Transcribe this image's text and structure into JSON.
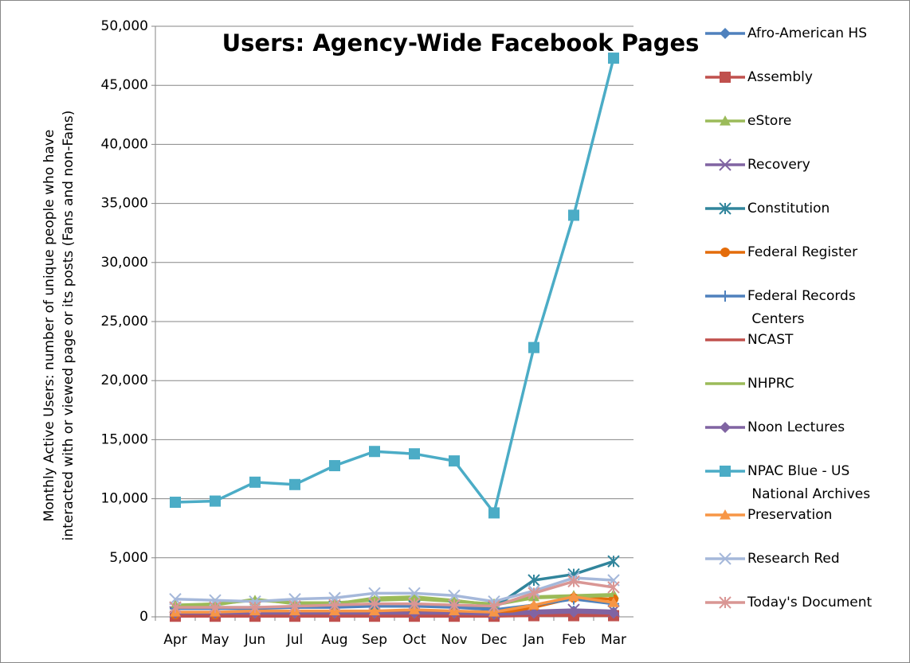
{
  "chart_data": {
    "type": "line",
    "title": "Users: Agency-Wide Facebook Pages",
    "y_label": [
      "Monthly Active Users: number of unique people who have",
      "interacted with or viewed page or its posts (Fans and non-Fans)"
    ],
    "categories": [
      "Apr",
      "May",
      "Jun",
      "Jul",
      "Aug",
      "Sep",
      "Oct",
      "Nov",
      "Dec",
      "Jan",
      "Feb",
      "Mar"
    ],
    "ylim": [
      0,
      50000
    ],
    "yticks": [
      0,
      {
        "value": 5000,
        "label": "5,000"
      },
      {
        "value": 10000,
        "label": "10,000"
      },
      {
        "value": 15000,
        "label": "15,000"
      },
      {
        "value": 20000,
        "label": "20,000"
      },
      {
        "value": 25000,
        "label": "25,000"
      },
      {
        "value": 30000,
        "label": "30,000"
      },
      {
        "value": 35000,
        "label": "35,000"
      },
      {
        "value": 40000,
        "label": "40,000"
      },
      {
        "value": 45000,
        "label": "45,000"
      },
      {
        "value": 50000,
        "label": "50,000"
      }
    ],
    "grid": true,
    "legend": "right",
    "series": [
      {
        "name": "Afro-American HS",
        "color": "#4f81bd",
        "marker": "diamond",
        "values": [
          300,
          300,
          300,
          300,
          300,
          300,
          300,
          300,
          200,
          400,
          500,
          400
        ]
      },
      {
        "name": "Assembly",
        "color": "#c0504d",
        "marker": "square",
        "values": [
          50,
          50,
          50,
          50,
          50,
          50,
          50,
          50,
          50,
          100,
          100,
          100
        ]
      },
      {
        "name": "eStore",
        "color": "#9bbb59",
        "marker": "triangle",
        "values": [
          1000,
          1100,
          1400,
          1200,
          1200,
          1400,
          1500,
          1300,
          1100,
          1700,
          1800,
          1900
        ]
      },
      {
        "name": "Recovery",
        "color": "#8064a2",
        "marker": "x",
        "values": [
          400,
          400,
          400,
          400,
          400,
          400,
          400,
          400,
          300,
          500,
          600,
          500
        ]
      },
      {
        "name": "Constitution",
        "color": "#31859c",
        "marker": "star",
        "values": [
          800,
          800,
          800,
          800,
          900,
          900,
          900,
          900,
          800,
          3100,
          3600,
          4700
        ]
      },
      {
        "name": "Federal Register",
        "color": "#e46c0a",
        "marker": "circle",
        "values": [
          200,
          200,
          300,
          300,
          300,
          300,
          300,
          300,
          200,
          800,
          1600,
          1500
        ]
      },
      {
        "name": "Federal Records Centers",
        "color": "#4f81bd",
        "marker": "plus",
        "values": [
          700,
          700,
          700,
          800,
          800,
          900,
          900,
          800,
          600,
          1000,
          1500,
          1100
        ]
      },
      {
        "name": "NCAST",
        "color": "#c0504d",
        "marker": "none",
        "values": [
          100,
          100,
          100,
          100,
          100,
          100,
          100,
          100,
          100,
          200,
          200,
          200
        ]
      },
      {
        "name": "NHPRC",
        "color": "#9bbb59",
        "marker": "none",
        "values": [
          900,
          1000,
          1500,
          1100,
          1100,
          1600,
          1700,
          1400,
          1000,
          1600,
          1700,
          1800
        ]
      },
      {
        "name": "Noon Lectures",
        "color": "#8064a2",
        "marker": "diamond",
        "values": [
          300,
          300,
          300,
          300,
          300,
          300,
          300,
          300,
          200,
          300,
          400,
          300
        ]
      },
      {
        "name": "NPAC Blue - US National Archives",
        "color": "#4bacc6",
        "marker": "square",
        "values": [
          9700,
          9800,
          11400,
          11200,
          12800,
          14000,
          13800,
          13200,
          8800,
          22800,
          34000,
          47300
        ]
      },
      {
        "name": "Preservation",
        "color": "#f79646",
        "marker": "triangle",
        "values": [
          400,
          400,
          500,
          500,
          500,
          500,
          600,
          500,
          400,
          1000,
          1700,
          1200
        ]
      },
      {
        "name": "Research Red",
        "color": "#a5b8da",
        "marker": "x",
        "values": [
          1500,
          1400,
          1300,
          1500,
          1600,
          2000,
          2000,
          1800,
          1300,
          2200,
          3300,
          3100
        ]
      },
      {
        "name": "Today's Document",
        "color": "#d99694",
        "marker": "star",
        "values": [
          800,
          800,
          800,
          900,
          1000,
          1100,
          1100,
          1000,
          900,
          2000,
          3000,
          2500
        ]
      }
    ]
  }
}
